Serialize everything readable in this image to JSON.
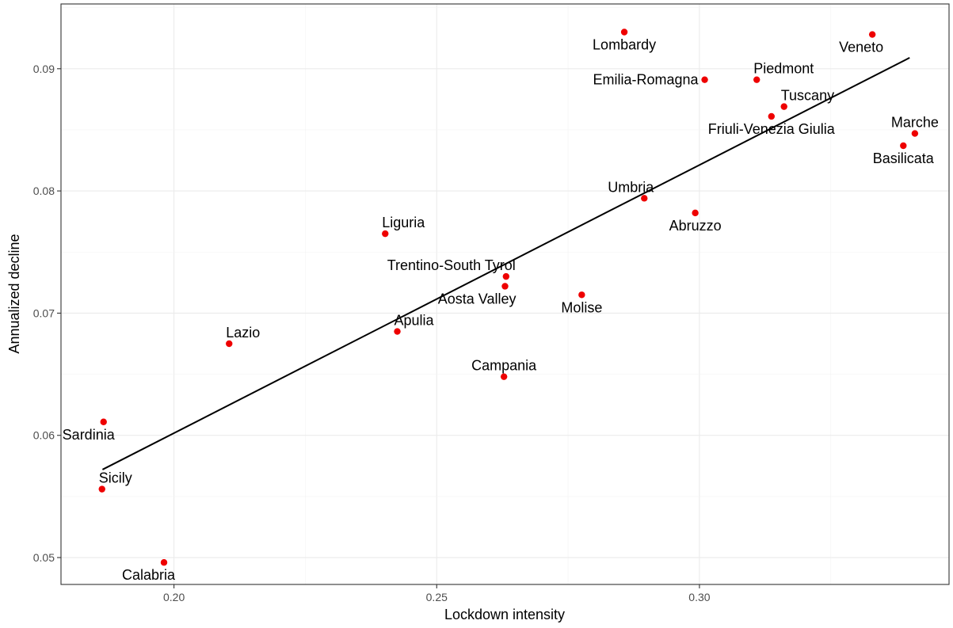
{
  "chart_data": {
    "type": "scatter",
    "title": "",
    "xlabel": "Lockdown intensity",
    "ylabel": "Annualized decline",
    "xlim": [
      0.1785,
      0.3475
    ],
    "ylim": [
      0.0478,
      0.0953
    ],
    "x_ticks": [
      {
        "value": 0.2,
        "label": "0.20"
      },
      {
        "value": 0.25,
        "label": "0.25"
      },
      {
        "value": 0.3,
        "label": "0.30"
      }
    ],
    "y_ticks": [
      {
        "value": 0.05,
        "label": "0.05"
      },
      {
        "value": 0.06,
        "label": "0.06"
      },
      {
        "value": 0.07,
        "label": "0.07"
      },
      {
        "value": 0.08,
        "label": "0.08"
      },
      {
        "value": 0.09,
        "label": "0.09"
      }
    ],
    "grid": true,
    "point_color": "#ee0000",
    "trendline": {
      "x": [
        0.1864,
        0.34
      ],
      "y": [
        0.0572,
        0.0909
      ],
      "color": "#000000"
    },
    "points": [
      {
        "label": "Lombardy",
        "x": 0.2857,
        "y": 0.093,
        "label_pos": "below"
      },
      {
        "label": "Veneto",
        "x": 0.3329,
        "y": 0.0928,
        "label_pos": "below-left"
      },
      {
        "label": "Emilia-Romagna",
        "x": 0.301,
        "y": 0.0891,
        "label_pos": "left"
      },
      {
        "label": "Piedmont",
        "x": 0.3109,
        "y": 0.0891,
        "label_pos": "above-right"
      },
      {
        "label": "Tuscany",
        "x": 0.3161,
        "y": 0.0869,
        "label_pos": "above-right"
      },
      {
        "label": "Friuli-Venezia Giulia",
        "x": 0.3137,
        "y": 0.0861,
        "label_pos": "below"
      },
      {
        "label": "Marche",
        "x": 0.341,
        "y": 0.0847,
        "label_pos": "above"
      },
      {
        "label": "Basilicata",
        "x": 0.3388,
        "y": 0.0837,
        "label_pos": "below"
      },
      {
        "label": "Umbria",
        "x": 0.2895,
        "y": 0.0794,
        "label_pos": "above-left"
      },
      {
        "label": "Abruzzo",
        "x": 0.2992,
        "y": 0.0782,
        "label_pos": "below"
      },
      {
        "label": "Liguria",
        "x": 0.2402,
        "y": 0.0765,
        "label_pos": "above-right"
      },
      {
        "label": "Trentino-South Tyrol",
        "x": 0.2632,
        "y": 0.073,
        "label_pos": "above-left"
      },
      {
        "label": "Aosta Valley",
        "x": 0.263,
        "y": 0.0722,
        "label_pos": "below-left"
      },
      {
        "label": "Molise",
        "x": 0.2776,
        "y": 0.0715,
        "label_pos": "below"
      },
      {
        "label": "Apulia",
        "x": 0.2425,
        "y": 0.0685,
        "label_pos": "above-right"
      },
      {
        "label": "Lazio",
        "x": 0.2105,
        "y": 0.0675,
        "label_pos": "above-right"
      },
      {
        "label": "Campania",
        "x": 0.2628,
        "y": 0.0648,
        "label_pos": "above"
      },
      {
        "label": "Sardinia",
        "x": 0.1866,
        "y": 0.0611,
        "label_pos": "below-left"
      },
      {
        "label": "Sicily",
        "x": 0.1863,
        "y": 0.0556,
        "label_pos": "above-right"
      },
      {
        "label": "Calabria",
        "x": 0.1981,
        "y": 0.0496,
        "label_pos": "below-left"
      }
    ]
  }
}
